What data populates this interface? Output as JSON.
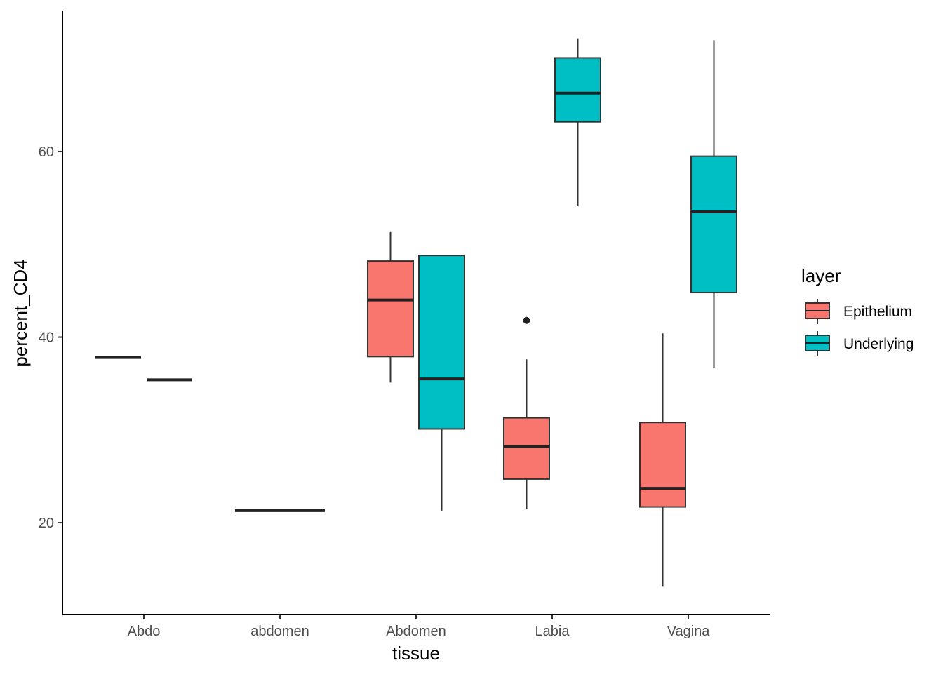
{
  "chart_data": {
    "type": "boxplot",
    "title": "",
    "xlabel": "tissue",
    "ylabel": "percent_CD4",
    "ylim": [
      10.1,
      75.2
    ],
    "yticks": [
      20,
      40,
      60
    ],
    "categories": [
      "Abdo",
      "abdomen",
      "Abdomen",
      "Labia",
      "Vagina"
    ],
    "legend": {
      "title": "layer",
      "placement": "right",
      "entries": [
        {
          "name": "Epithelium",
          "color": "#F8766D"
        },
        {
          "name": "Underlying",
          "color": "#00BFC4"
        }
      ]
    },
    "boxes": [
      {
        "category": "Abdo",
        "layer": "Epithelium",
        "dodge": "left",
        "lower": 37.8,
        "q1": 37.8,
        "median": 37.8,
        "q3": 37.8,
        "upper": 37.8,
        "outliers": []
      },
      {
        "category": "Abdo",
        "layer": "Underlying",
        "dodge": "right",
        "lower": 35.4,
        "q1": 35.4,
        "median": 35.4,
        "q3": 35.4,
        "upper": 35.4,
        "outliers": []
      },
      {
        "category": "abdomen",
        "layer": "Epithelium",
        "dodge": "full",
        "lower": 21.3,
        "q1": 21.3,
        "median": 21.3,
        "q3": 21.3,
        "upper": 21.3,
        "outliers": []
      },
      {
        "category": "Abdomen",
        "layer": "Epithelium",
        "dodge": "left",
        "lower": 35.1,
        "q1": 37.9,
        "median": 44.0,
        "q3": 48.2,
        "upper": 51.4,
        "outliers": []
      },
      {
        "category": "Abdomen",
        "layer": "Underlying",
        "dodge": "right",
        "lower": 21.3,
        "q1": 30.1,
        "median": 35.5,
        "q3": 48.8,
        "upper": 48.8,
        "outliers": []
      },
      {
        "category": "Labia",
        "layer": "Epithelium",
        "dodge": "left",
        "lower": 21.5,
        "q1": 24.7,
        "median": 28.2,
        "q3": 31.3,
        "upper": 37.6,
        "outliers": [
          41.8
        ]
      },
      {
        "category": "Labia",
        "layer": "Underlying",
        "dodge": "right",
        "lower": 54.1,
        "q1": 63.2,
        "median": 66.3,
        "q3": 70.1,
        "upper": 72.2,
        "outliers": []
      },
      {
        "category": "Vagina",
        "layer": "Epithelium",
        "dodge": "left",
        "lower": 13.1,
        "q1": 21.7,
        "median": 23.7,
        "q3": 30.8,
        "upper": 40.4,
        "outliers": []
      },
      {
        "category": "Vagina",
        "layer": "Underlying",
        "dodge": "right",
        "lower": 36.7,
        "q1": 44.8,
        "median": 53.5,
        "q3": 59.5,
        "upper": 72.0,
        "outliers": []
      }
    ]
  }
}
